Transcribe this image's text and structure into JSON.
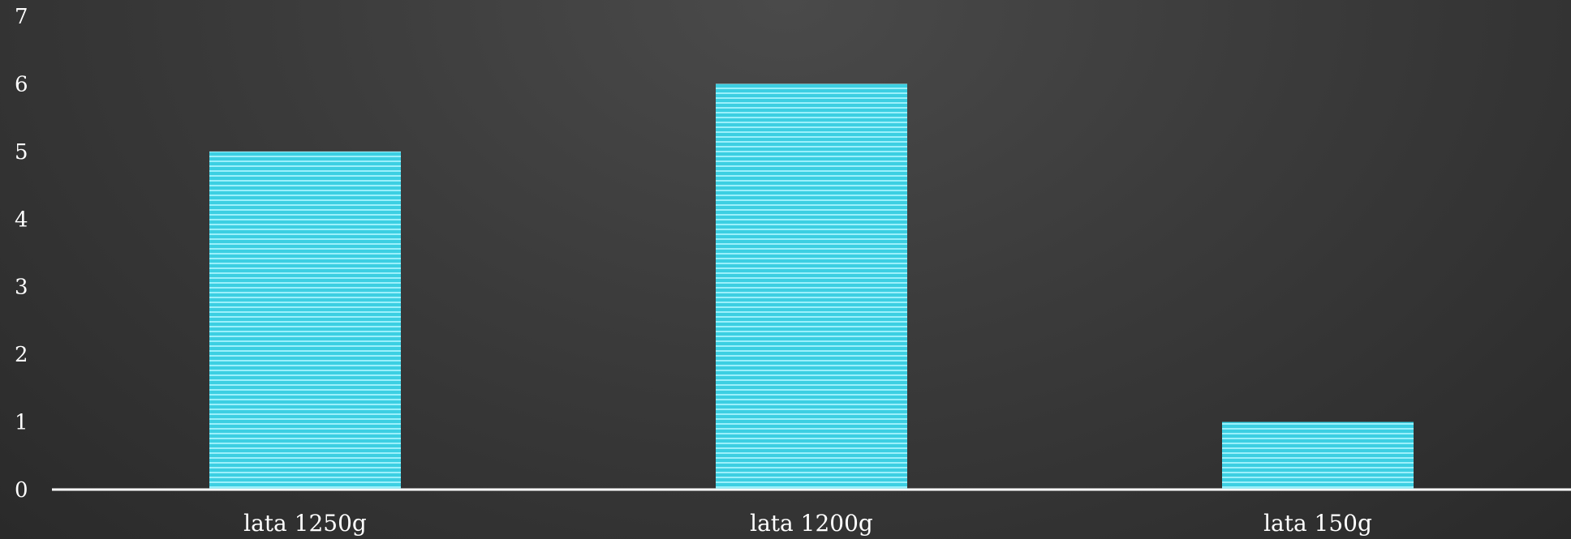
{
  "chart_data": {
    "type": "bar",
    "categories": [
      "lata 1250g",
      "lata 1200g",
      "lata 150g"
    ],
    "values": [
      5,
      6,
      1
    ],
    "title": "",
    "xlabel": "",
    "ylabel": "",
    "ylim": [
      0,
      7
    ],
    "yticks": [
      "0",
      "1",
      "2",
      "3",
      "4",
      "5",
      "6",
      "7"
    ],
    "grid": false,
    "legend": "none"
  },
  "colors": {
    "bar_fill": "#3ccfe2",
    "bar_stripe": "#9af0fb",
    "axis_line": "#ffffff",
    "text": "#ffffff"
  }
}
